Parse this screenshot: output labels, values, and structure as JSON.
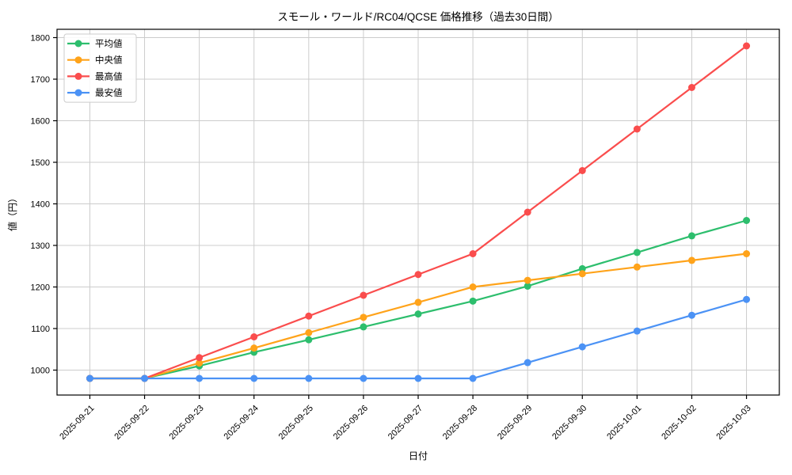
{
  "chart_data": {
    "type": "line",
    "title": "スモール・ワールド/RC04/QCSE 価格推移（過去30日間）",
    "xlabel": "日付",
    "ylabel": "値（円）",
    "x": [
      "2025-09-21",
      "2025-09-22",
      "2025-09-23",
      "2025-09-24",
      "2025-09-25",
      "2025-09-26",
      "2025-09-27",
      "2025-09-28",
      "2025-09-29",
      "2025-09-30",
      "2025-10-01",
      "2025-10-02",
      "2025-10-03"
    ],
    "series": [
      {
        "name": "平均値",
        "color": "#2dbe6d",
        "marker": "circle",
        "values": [
          980,
          980,
          1010,
          1043,
          1073,
          1104,
          1135,
          1166,
          1202,
          1244,
          1283,
          1323,
          1360
        ]
      },
      {
        "name": "中央値",
        "color": "#ffa31a",
        "marker": "circle",
        "values": [
          980,
          980,
          1017,
          1053,
          1090,
          1127,
          1163,
          1200,
          1216,
          1232,
          1248,
          1264,
          1280
        ]
      },
      {
        "name": "最高値",
        "color": "#fa4d4d",
        "marker": "circle",
        "values": [
          980,
          980,
          1030,
          1080,
          1130,
          1180,
          1230,
          1280,
          1380,
          1480,
          1580,
          1680,
          1780
        ]
      },
      {
        "name": "最安値",
        "color": "#4b92f5",
        "marker": "circle",
        "values": [
          980,
          980,
          980,
          980,
          980,
          980,
          980,
          980,
          1018,
          1056,
          1094,
          1132,
          1170
        ]
      }
    ],
    "ylim": [
      940,
      1820
    ],
    "yticks": [
      1000,
      1100,
      1200,
      1300,
      1400,
      1500,
      1600,
      1700,
      1800
    ],
    "grid": true,
    "legend_position": "upper left",
    "x_tick_rotation_deg": 45
  },
  "colors": {
    "grid": "#cccccc",
    "axis": "#000000",
    "text": "#000000",
    "legend_border": "#cccccc",
    "legend_background": "rgba(255,255,255,0.85)",
    "background": "#ffffff"
  }
}
